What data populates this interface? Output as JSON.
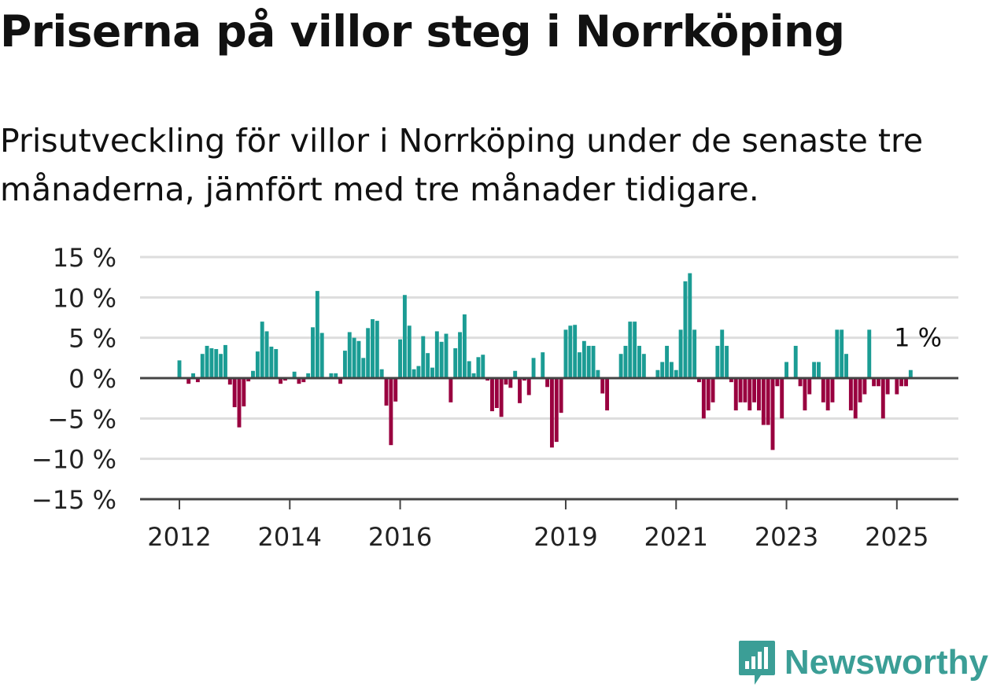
{
  "title": "Priserna på villor steg i Norrköping",
  "subtitle": "Prisutveckling för villor i Norrköping under de senaste tre månaderna, jämfört med tre månader tidigare.",
  "brand": {
    "name": "Newsworthy"
  },
  "chart_data": {
    "type": "bar",
    "title": "Priserna på villor steg i Norrköping",
    "subtitle": "Prisutveckling för villor i Norrköping under de senaste tre månaderna, jämfört med tre månader tidigare.",
    "x_start": "2012-01",
    "x_interval": "month",
    "ylim": [
      -15,
      15
    ],
    "yticks": [
      15,
      10,
      5,
      0,
      -5,
      -10,
      -15
    ],
    "ytick_labels": [
      "15 %",
      "10 %",
      "5 %",
      "0 %",
      "−5 %",
      "−10 %",
      "−15 %"
    ],
    "xtick_labels": [
      "2012",
      "2014",
      "2016",
      "2019",
      "2021",
      "2023",
      "2025"
    ],
    "xtick_months": [
      "2012-01",
      "2014-01",
      "2016-01",
      "2019-01",
      "2021-01",
      "2023-01",
      "2025-01"
    ],
    "grid": true,
    "colors": {
      "positive": "#1b9c94",
      "negative": "#99003f",
      "grid": "#dddddd",
      "axis": "#444444",
      "text": "#222222"
    },
    "annotation": {
      "text": "1 %"
    },
    "values": [
      2.2,
      0,
      -0.7,
      0.6,
      -0.5,
      3,
      4,
      3.7,
      3.6,
      3,
      4.1,
      -0.8,
      -3.6,
      -6.1,
      -3.5,
      -0.4,
      0.9,
      3.3,
      7,
      5.8,
      3.9,
      3.6,
      -0.7,
      -0.3,
      0,
      0.8,
      -0.7,
      -0.5,
      0.6,
      6.3,
      10.8,
      5.6,
      0,
      0.6,
      0.6,
      -0.7,
      3.4,
      5.7,
      5,
      4.6,
      2.5,
      6.2,
      7.3,
      7.1,
      1.1,
      -3.4,
      -8.3,
      -2.9,
      4.8,
      10.3,
      6.5,
      1.1,
      1.5,
      5.2,
      3.1,
      1.3,
      5.8,
      4.5,
      5.5,
      -3,
      3.7,
      5.7,
      7.9,
      2.1,
      0.6,
      2.6,
      2.9,
      -0.3,
      -4.1,
      -3.7,
      -4.8,
      -0.8,
      -1.2,
      0.9,
      -3.1,
      -0.3,
      -2.1,
      2.5,
      0,
      3.2,
      -1.1,
      -8.6,
      -7.9,
      -4.3,
      6,
      6.5,
      6.6,
      3.2,
      4.6,
      4,
      4,
      1,
      -1.9,
      -4,
      0,
      0,
      3,
      4,
      7,
      7,
      4,
      3,
      0,
      0,
      1,
      2,
      4,
      2,
      1,
      6,
      12,
      13,
      6,
      -0.5,
      -5,
      -4,
      -3,
      4,
      6,
      4,
      -0.5,
      -4,
      -3,
      -3,
      -4,
      -3,
      -4,
      -5.8,
      -5.8,
      -8.9,
      -1,
      -5,
      2,
      0,
      4,
      -1,
      -4,
      -2,
      2,
      2,
      -3,
      -4,
      -3,
      6,
      6,
      3,
      -4,
      -5,
      -3,
      -2,
      6,
      -1,
      -1,
      -5,
      -2,
      0,
      -2,
      -1,
      -1,
      1
    ]
  }
}
